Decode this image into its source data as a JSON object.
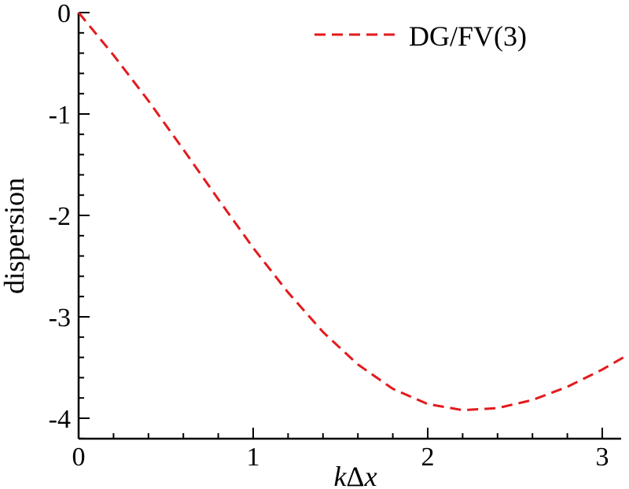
{
  "chart_data": {
    "type": "line",
    "title": "",
    "xlabel": "kΔx",
    "xlabel_parts": {
      "k": "k",
      "delta": "Δ",
      "x": "x"
    },
    "ylabel": "dispersion",
    "xlim": [
      0,
      3.14159
    ],
    "ylim": [
      -4.2,
      0
    ],
    "xticks": [
      0,
      1,
      2,
      3
    ],
    "xtick_labels": [
      "0",
      "1",
      "2",
      "3"
    ],
    "yticks": [
      0,
      -1,
      -2,
      -3,
      -4
    ],
    "ytick_labels": [
      "0",
      "-1",
      "-2",
      "-3",
      "-4"
    ],
    "grid": false,
    "legend_position": "top-right",
    "series": [
      {
        "name": "DG/FV(3)",
        "color": "#e31a1c",
        "dash": "dashed",
        "x": [
          0,
          0.2,
          0.4,
          0.6,
          0.8,
          1.0,
          1.2,
          1.4,
          1.6,
          1.8,
          2.0,
          2.2,
          2.4,
          2.6,
          2.8,
          3.0,
          3.14159
        ],
        "y": [
          0,
          -0.42,
          -0.87,
          -1.35,
          -1.84,
          -2.32,
          -2.76,
          -3.15,
          -3.47,
          -3.71,
          -3.86,
          -3.92,
          -3.9,
          -3.82,
          -3.69,
          -3.52,
          -3.38
        ]
      }
    ]
  }
}
